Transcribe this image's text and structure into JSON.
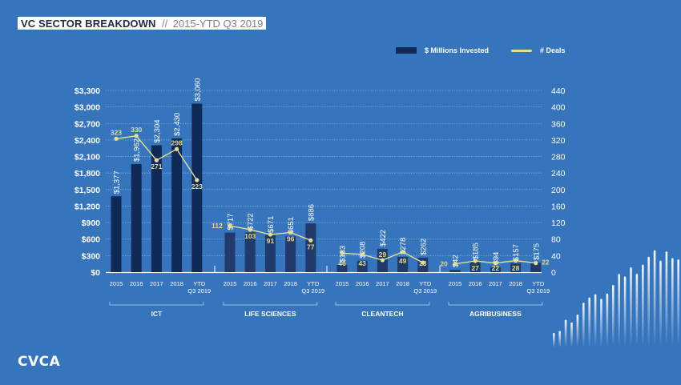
{
  "header": {
    "title_main": "VC SECTOR BREAKDOWN",
    "title_sep": "//",
    "title_sub": "2015-YTD Q3 2019"
  },
  "legend": {
    "bars_label": "$ Millions Invested",
    "line_label": "# Deals"
  },
  "logo": {
    "text": "CVCA"
  },
  "colors": {
    "background": "#3674bc",
    "bars_ict": "#0f2a57",
    "bars_other": "#1f3a6b",
    "line": "#e4de9a",
    "deal_label": "#e8d98a",
    "text": "#ffffff"
  },
  "chart_data": {
    "type": "bar",
    "title": "VC SECTOR BREAKDOWN // 2015-YTD Q3 2019",
    "xlabel": "",
    "ylabel": "$ Millions Invested",
    "y2label": "# Deals",
    "ylim": [
      0,
      3300
    ],
    "y2lim": [
      0,
      440
    ],
    "yticks": [
      "$0",
      "$300",
      "$600",
      "$900",
      "$1,200",
      "$1,500",
      "$1,800",
      "$2,100",
      "$2,400",
      "$2,700",
      "$3,000",
      "$3,300"
    ],
    "y2ticks": [
      "0",
      "40",
      "80",
      "120",
      "160",
      "200",
      "240",
      "280",
      "320",
      "360",
      "400",
      "440"
    ],
    "grid": true,
    "legend_position": "top-right",
    "categories": [
      "2015",
      "2016",
      "2017",
      "2018",
      "YTD Q3 2019"
    ],
    "groups": [
      {
        "name": "ICT",
        "invested": [
          1377,
          1962,
          2304,
          2430,
          3060
        ],
        "invested_labels": [
          "$1,377",
          "$1,962",
          "$2,304",
          "$2,430",
          "$3,060"
        ],
        "deals": [
          323,
          330,
          271,
          298,
          223
        ]
      },
      {
        "name": "LIFE SCIENCES",
        "invested": [
          717,
          722,
          671,
          651,
          886
        ],
        "invested_labels": [
          "$717",
          "$722",
          "$671",
          "$651",
          "$886"
        ],
        "deals": [
          112,
          103,
          91,
          96,
          77
        ]
      },
      {
        "name": "CLEANTECH",
        "invested": [
          133,
          208,
          422,
          278,
          262
        ],
        "invested_labels": [
          "$133",
          "$208",
          "$422",
          "$278",
          "$262"
        ],
        "deals": [
          46,
          43,
          29,
          49,
          23
        ]
      },
      {
        "name": "AGRIBUSINESS",
        "invested": [
          42,
          185,
          94,
          157,
          175
        ],
        "invested_labels": [
          "$42",
          "$185",
          "$94",
          "$157",
          "$175"
        ],
        "deals": [
          20,
          27,
          22,
          28,
          22
        ]
      }
    ],
    "series": [
      {
        "name": "$ Millions Invested",
        "type": "bar"
      },
      {
        "name": "# Deals",
        "type": "line",
        "axis": "right"
      }
    ]
  }
}
